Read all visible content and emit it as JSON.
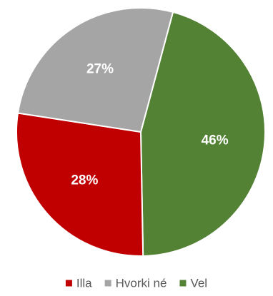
{
  "chart_data": {
    "type": "pie",
    "title": "",
    "series": [
      {
        "categories": [
          "Vel",
          "Illa",
          "Hvorki né"
        ],
        "values": [
          46,
          28,
          27
        ],
        "labels": [
          "46%",
          "28%",
          "27%"
        ],
        "colors": [
          "#548235",
          "#c00000",
          "#a5a5a5"
        ]
      }
    ],
    "legend": {
      "position": "bottom",
      "order": [
        "Illa",
        "Hvorki né",
        "Vel"
      ]
    },
    "start_angle_deg": 15,
    "direction": "clockwise"
  }
}
